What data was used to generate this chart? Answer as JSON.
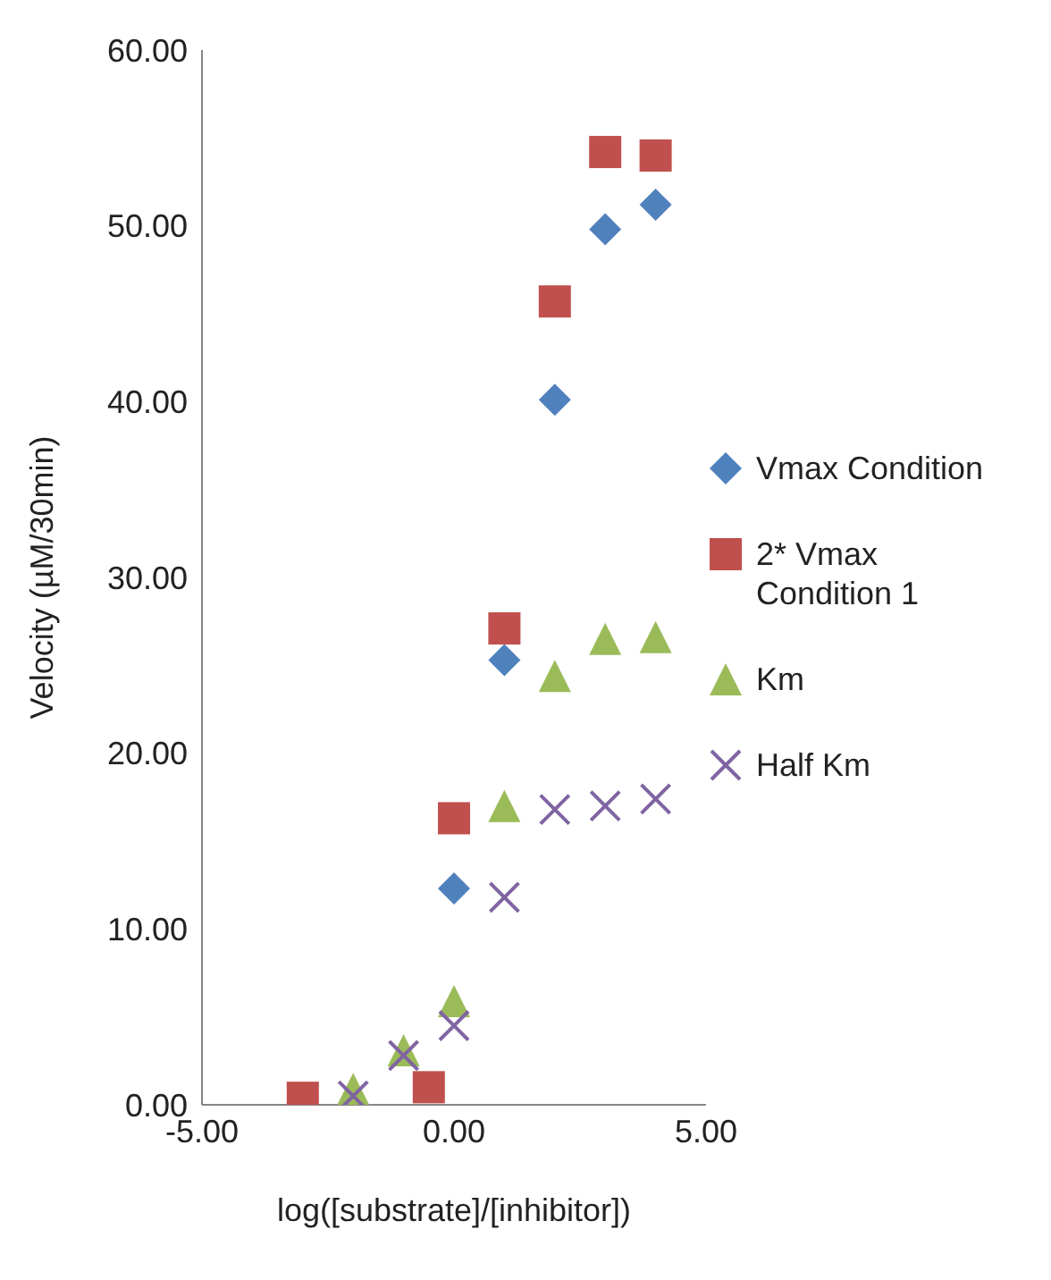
{
  "chart_data": {
    "type": "scatter",
    "xlabel": "log([substrate]/[inhibitor])",
    "ylabel": "Velocity (µM/30min)",
    "xlim": [
      -5,
      5
    ],
    "xticks": [
      {
        "value": -5,
        "label": "-5.00"
      },
      {
        "value": 0,
        "label": "0.00"
      },
      {
        "value": 5,
        "label": "5.00"
      }
    ],
    "ylim": [
      0,
      60
    ],
    "yticks": [
      {
        "value": 0,
        "label": "0.00"
      },
      {
        "value": 10,
        "label": "10.00"
      },
      {
        "value": 20,
        "label": "20.00"
      },
      {
        "value": 30,
        "label": "30.00"
      },
      {
        "value": 40,
        "label": "40.00"
      },
      {
        "value": 50,
        "label": "50.00"
      },
      {
        "value": 60,
        "label": "60.00"
      }
    ],
    "grid": false,
    "legend": "right",
    "series": [
      {
        "name": "Vmax Condition",
        "color": "#4f81bd",
        "marker": "diamond",
        "x": [
          0,
          1,
          2,
          3,
          4
        ],
        "values": [
          12.3,
          25.3,
          40.1,
          49.8,
          51.2
        ]
      },
      {
        "name": "2* Vmax Condition 1",
        "color": "#c0504d",
        "marker": "square",
        "x": [
          -3,
          -0.5,
          0,
          1,
          2,
          3,
          4
        ],
        "values": [
          0.4,
          1.0,
          16.3,
          27.1,
          45.7,
          54.2,
          54.0
        ]
      },
      {
        "name": "Km",
        "color": "#9bbb59",
        "marker": "triangle",
        "x": [
          -2,
          -1,
          0,
          1,
          2,
          3,
          4
        ],
        "values": [
          0.9,
          3.1,
          5.9,
          17.0,
          24.4,
          26.5,
          26.6
        ]
      },
      {
        "name": "Half Km",
        "color": "#8064a2",
        "marker": "cross",
        "x": [
          -2,
          -1,
          0,
          1,
          2,
          3,
          4
        ],
        "values": [
          0.5,
          2.8,
          4.5,
          11.8,
          16.8,
          17.0,
          17.4
        ]
      }
    ]
  }
}
